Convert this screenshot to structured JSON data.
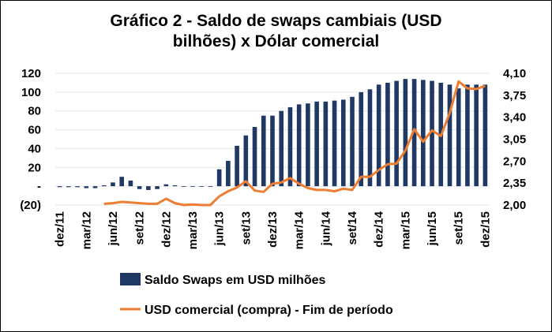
{
  "chart_data": {
    "type": "bar+line",
    "title_lines": [
      "Gráfico 2 - Saldo de swaps cambiais (USD",
      "bilhões) x Dólar comercial"
    ],
    "left_axis": {
      "ylim": [
        -20,
        120
      ],
      "ticks": [
        120,
        100,
        80,
        60,
        40,
        20,
        0,
        -20
      ],
      "tick_labels": [
        "120",
        "100",
        "80",
        "60",
        "40",
        "20",
        "-",
        "(20)"
      ]
    },
    "right_axis": {
      "ylim": [
        2.0,
        4.1
      ],
      "tick_labels": [
        "4,10",
        "3,75",
        "3,40",
        "3,05",
        "2,70",
        "2,35",
        "2,00"
      ],
      "ticks": [
        4.1,
        3.75,
        3.4,
        3.05,
        2.7,
        2.35,
        2.0
      ]
    },
    "x_labels": [
      "dez/11",
      "mar/12",
      "jun/12",
      "set/12",
      "dez/12",
      "mar/13",
      "jun/13",
      "set/13",
      "dez/13",
      "mar/14",
      "jun/14",
      "set/14",
      "dez/14",
      "mar/15",
      "jun/15",
      "set/15",
      "dez/15"
    ],
    "months": [
      "dez/11",
      "jan/12",
      "fev/12",
      "mar/12",
      "abr/12",
      "mai/12",
      "jun/12",
      "jul/12",
      "ago/12",
      "set/12",
      "out/12",
      "nov/12",
      "dez/12",
      "jan/13",
      "fev/13",
      "mar/13",
      "abr/13",
      "mai/13",
      "jun/13",
      "jul/13",
      "ago/13",
      "set/13",
      "out/13",
      "nov/13",
      "dez/13",
      "jan/14",
      "fev/14",
      "mar/14",
      "abr/14",
      "mai/14",
      "jun/14",
      "jul/14",
      "ago/14",
      "set/14",
      "out/14",
      "nov/14",
      "dez/14",
      "jan/15",
      "fev/15",
      "mar/15",
      "abr/15",
      "mai/15",
      "jun/15",
      "jul/15",
      "ago/15",
      "set/15",
      "out/15",
      "nov/15",
      "dez/15"
    ],
    "series": [
      {
        "name": "Saldo Swaps em USD milhões",
        "type": "bar",
        "axis": "left",
        "color": "#1f3864",
        "values": [
          -1,
          -1,
          -1,
          -2,
          -2,
          1,
          4,
          10,
          6,
          -3,
          -4,
          -3,
          2,
          1,
          0,
          0,
          0,
          0,
          18,
          27,
          43,
          54,
          63,
          75,
          75,
          80,
          84,
          87,
          88,
          90,
          90,
          91,
          92,
          95,
          100,
          103,
          108,
          110,
          112,
          114,
          114,
          113,
          112,
          110,
          108,
          104,
          108,
          108,
          108
        ]
      },
      {
        "name": "USD comercial (compra) - Fim de período",
        "type": "line",
        "axis": "right",
        "color": "#ed7d31",
        "values": [
          null,
          null,
          null,
          null,
          null,
          2.02,
          2.03,
          2.05,
          2.04,
          2.03,
          2.02,
          2.02,
          2.1,
          2.03,
          2.0,
          2.01,
          2.0,
          2.0,
          2.14,
          2.22,
          2.28,
          2.38,
          2.23,
          2.21,
          2.34,
          2.36,
          2.43,
          2.34,
          2.27,
          2.24,
          2.24,
          2.22,
          2.26,
          2.24,
          2.45,
          2.45,
          2.56,
          2.65,
          2.66,
          2.87,
          3.21,
          3.01,
          3.19,
          3.1,
          3.47,
          3.97,
          3.86,
          3.85,
          3.9
        ]
      }
    ],
    "legend_position": "bottom"
  }
}
